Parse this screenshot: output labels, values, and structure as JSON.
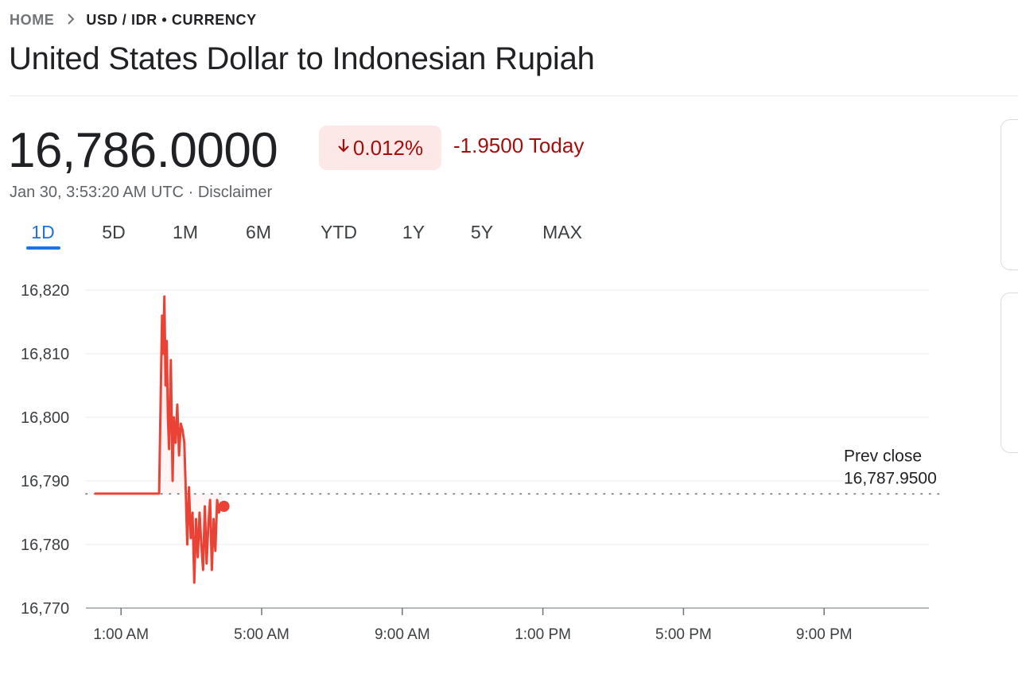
{
  "breadcrumb": {
    "home": "HOME",
    "separator_icon": "chevron-right-icon",
    "current": "USD / IDR • CURRENCY"
  },
  "title": "United States Dollar to Indonesian Rupiah",
  "quote": {
    "price": "16,786.0000",
    "change_percent": "0.012%",
    "change_direction_icon": "arrow-down-icon",
    "change_today": "-1.9500 Today",
    "timestamp": "Jan 30, 3:53:20 AM UTC",
    "timestamp_separator": "·",
    "disclaimer": "Disclaimer"
  },
  "range_tabs": [
    "1D",
    "5D",
    "1M",
    "6M",
    "YTD",
    "1Y",
    "5Y",
    "MAX"
  ],
  "active_tab": "1D",
  "colors": {
    "negative": "#a50e0e",
    "negative_bg": "#fce8e6",
    "line": "#ea4335",
    "accent": "#1a73e8"
  },
  "chart_data": {
    "type": "line",
    "series": [
      {
        "x": [
          "00:15",
          "00:40",
          "01:00",
          "01:20",
          "01:40",
          "01:45",
          "01:55",
          "02:05",
          "02:10",
          "02:12",
          "02:14",
          "02:16",
          "02:18",
          "02:20",
          "02:22",
          "02:25",
          "02:28",
          "02:30",
          "02:33",
          "02:36",
          "02:39",
          "02:42",
          "02:45",
          "02:48",
          "02:50",
          "02:53",
          "02:56",
          "02:59",
          "03:02",
          "03:05",
          "03:08",
          "03:11",
          "03:14",
          "03:17",
          "03:20",
          "03:23",
          "03:26",
          "03:29",
          "03:32",
          "03:35",
          "03:38",
          "03:41",
          "03:44",
          "03:47",
          "03:50",
          "03:53"
        ],
        "y": [
          16788,
          16788,
          16788,
          16788,
          16788,
          16788,
          16788,
          16788,
          16816,
          16810,
          16819,
          16805,
          16812,
          16800,
          16795,
          16809,
          16790,
          16800,
          16796,
          16802,
          16794,
          16799,
          16798,
          16796,
          16790,
          16780,
          16789,
          16781,
          16785,
          16774,
          16784,
          16778,
          16785,
          16780,
          16776,
          16786,
          16777,
          16783,
          16787,
          16776,
          16784,
          16779,
          16787,
          16785,
          16786,
          16786
        ]
      }
    ],
    "ylim": [
      16770,
      16820
    ],
    "yticks": [
      "16,820",
      "16,810",
      "16,800",
      "16,790",
      "16,780",
      "16,770"
    ],
    "xticks": [
      "1:00 AM",
      "5:00 AM",
      "9:00 AM",
      "1:00 PM",
      "5:00 PM",
      "9:00 PM"
    ],
    "xlim": [
      "00:00",
      "24:00"
    ],
    "grid": true,
    "prev_close": 16787.95,
    "prev_close_label": "Prev close",
    "prev_close_value": "16,787.9500"
  }
}
